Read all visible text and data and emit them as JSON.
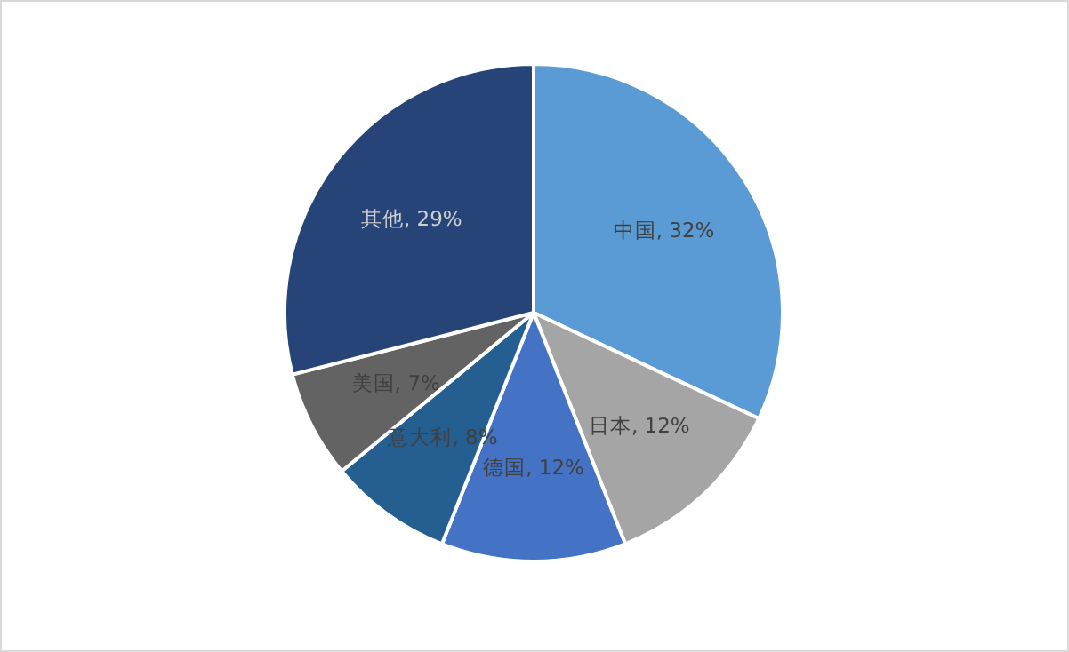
{
  "chart_data": {
    "type": "pie",
    "categories": [
      "中国",
      "日本",
      "德国",
      "意大利",
      "美国",
      "其他"
    ],
    "values": [
      32,
      12,
      12,
      8,
      7,
      29
    ],
    "value_labels": [
      "32%",
      "12%",
      "12%",
      "8%",
      "7%",
      "29%"
    ],
    "colors": [
      "#5b9bd5",
      "#a5a5a5",
      "#4472c4",
      "#255e91",
      "#636363",
      "#264478"
    ]
  }
}
